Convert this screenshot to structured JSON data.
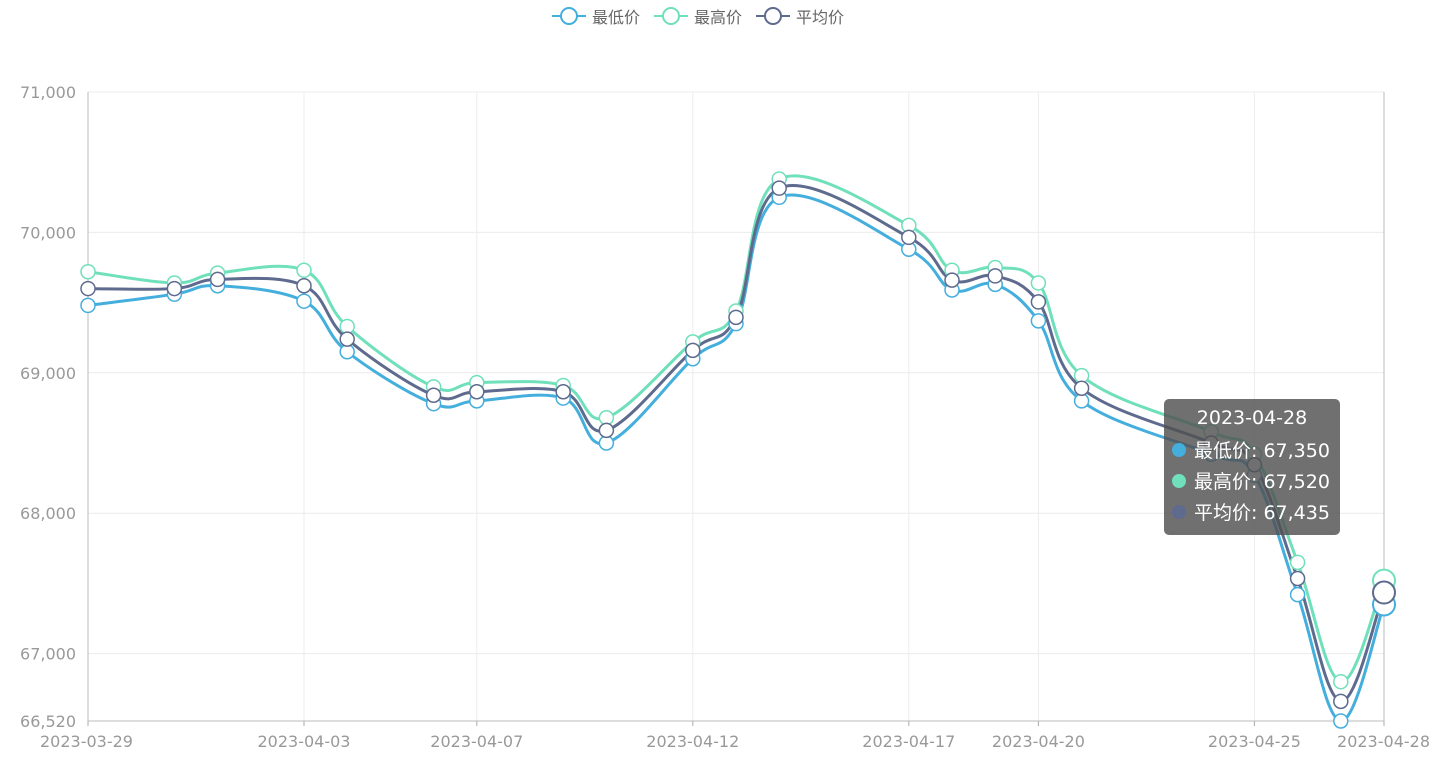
{
  "legend": [
    {
      "label": "最低价",
      "color": "#44aedd"
    },
    {
      "label": "最高价",
      "color": "#6fe0bb"
    },
    {
      "label": "平均价",
      "color": "#5e6a8e"
    }
  ],
  "tooltip": {
    "title": "2023-04-28",
    "rows": [
      {
        "text": "最低价: 67,350",
        "color": "#44aedd"
      },
      {
        "text": "最高价: 67,520",
        "color": "#6fe0bb"
      },
      {
        "text": "平均价: 67,435",
        "color": "#5e6a8e"
      }
    ]
  },
  "chart_data": {
    "type": "line",
    "ylim": [
      66520,
      71000
    ],
    "y_ticks": [
      "71,000",
      "70,000",
      "69,000",
      "68,000",
      "67,000",
      "66,520"
    ],
    "x_tick_labels": [
      "2023-03-29",
      "2023-04-03",
      "2023-04-07",
      "2023-04-12",
      "2023-04-17",
      "2023-04-20",
      "2023-04-25",
      "2023-04-28"
    ],
    "grid": true,
    "legend_position": "top-center",
    "x": [
      "2023-03-29",
      "2023-03-31",
      "2023-04-01",
      "2023-04-03",
      "2023-04-04",
      "2023-04-06",
      "2023-04-07",
      "2023-04-09",
      "2023-04-10",
      "2023-04-12",
      "2023-04-13",
      "2023-04-14",
      "2023-04-17",
      "2023-04-18",
      "2023-04-19",
      "2023-04-20",
      "2023-04-21",
      "2023-04-24",
      "2023-04-25",
      "2023-04-26",
      "2023-04-27",
      "2023-04-28"
    ],
    "series": [
      {
        "name": "最低价",
        "color": "#44aedd",
        "values": [
          69480,
          69560,
          69620,
          69510,
          69150,
          68780,
          68800,
          68820,
          68500,
          69100,
          69350,
          70250,
          69880,
          69590,
          69630,
          69370,
          68800,
          68420,
          68270,
          67420,
          66520,
          67350
        ]
      },
      {
        "name": "最高价",
        "color": "#6fe0bb",
        "values": [
          69720,
          69640,
          69710,
          69730,
          69330,
          68900,
          68930,
          68910,
          68680,
          69220,
          69440,
          70380,
          70050,
          69730,
          69750,
          69640,
          68980,
          68580,
          68420,
          67650,
          66800,
          67520
        ]
      },
      {
        "name": "平均价",
        "color": "#5e6a8e",
        "values": [
          69600,
          69600,
          69665,
          69620,
          69240,
          68840,
          68865,
          68865,
          68590,
          69160,
          69395,
          70315,
          69965,
          69660,
          69690,
          69505,
          68890,
          68500,
          68345,
          67535,
          66660,
          67435
        ]
      }
    ]
  }
}
